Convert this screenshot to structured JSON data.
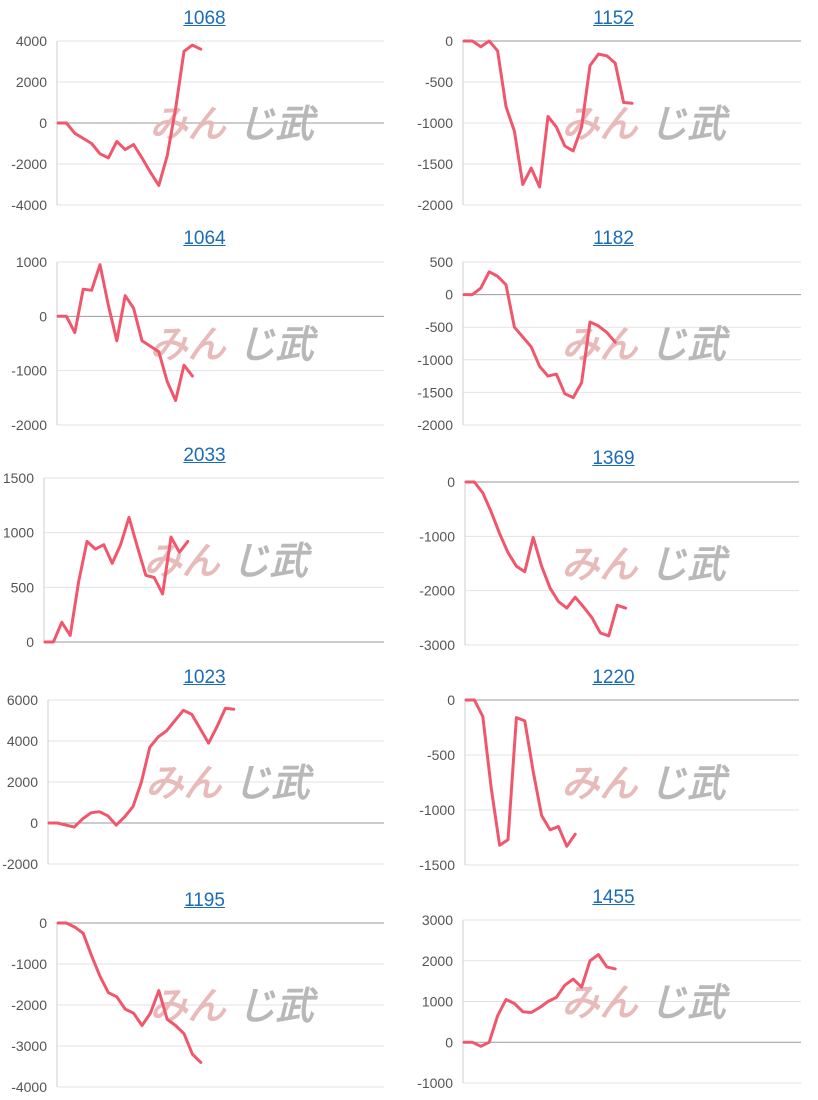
{
  "line_color": "#f0576d",
  "watermark_colors": {
    "kana": "#e8b7b7",
    "kanji": "#b5b5b5"
  },
  "watermark": {
    "kana": "みん",
    "kanji": "じ武"
  },
  "chart_data": [
    {
      "type": "line",
      "title": "1068",
      "yticks": [
        4000,
        2000,
        0,
        -2000,
        -4000
      ],
      "ylim": [
        -4000,
        4000
      ],
      "y": [
        0,
        0,
        -500,
        -750,
        -1000,
        -1500,
        -1700,
        -900,
        -1300,
        -1050,
        -1700,
        -2400,
        -3050,
        -1600,
        700,
        3500,
        3800,
        3600
      ]
    },
    {
      "type": "line",
      "title": "1152",
      "yticks": [
        0,
        -500,
        -1000,
        -1500,
        -2000
      ],
      "ylim": [
        -2000,
        0
      ],
      "y": [
        0,
        0,
        -70,
        0,
        -120,
        -800,
        -1100,
        -1750,
        -1550,
        -1780,
        -920,
        -1050,
        -1280,
        -1340,
        -1050,
        -300,
        -160,
        -180,
        -270,
        -750,
        -760
      ]
    },
    {
      "type": "line",
      "title": "1064",
      "yticks": [
        1000,
        0,
        -1000,
        -2000
      ],
      "ylim": [
        -2000,
        1000
      ],
      "y": [
        0,
        0,
        -300,
        500,
        480,
        950,
        200,
        -450,
        380,
        150,
        -450,
        -550,
        -650,
        -1200,
        -1550,
        -900,
        -1100
      ]
    },
    {
      "type": "line",
      "title": "1182",
      "yticks": [
        500,
        0,
        -500,
        -1000,
        -1500,
        -2000
      ],
      "ylim": [
        -2000,
        500
      ],
      "y": [
        0,
        0,
        100,
        350,
        280,
        150,
        -500,
        -650,
        -800,
        -1100,
        -1250,
        -1220,
        -1520,
        -1580,
        -1350,
        -420,
        -480,
        -580,
        -730
      ]
    },
    {
      "type": "line",
      "title": "2033",
      "yticks": [
        1500,
        1000,
        500,
        0
      ],
      "ylim": [
        0,
        1500
      ],
      "y": [
        0,
        0,
        180,
        60,
        550,
        920,
        850,
        890,
        720,
        890,
        1140,
        870,
        610,
        590,
        440,
        960,
        820,
        920
      ]
    },
    {
      "type": "line",
      "title": "1369",
      "yticks": [
        0,
        -1000,
        -2000,
        -3000
      ],
      "ylim": [
        -3000,
        0
      ],
      "y": [
        0,
        0,
        -200,
        -550,
        -950,
        -1300,
        -1550,
        -1650,
        -1020,
        -1550,
        -1950,
        -2200,
        -2320,
        -2120,
        -2300,
        -2500,
        -2780,
        -2830,
        -2270,
        -2320
      ]
    },
    {
      "type": "line",
      "title": "1023",
      "yticks": [
        6000,
        4000,
        2000,
        0,
        -2000
      ],
      "ylim": [
        -2000,
        6000
      ],
      "y": [
        0,
        0,
        -100,
        -200,
        200,
        500,
        550,
        350,
        -100,
        300,
        800,
        2000,
        3700,
        4200,
        4500,
        5000,
        5500,
        5300,
        4600,
        3900,
        4700,
        5600,
        5550
      ]
    },
    {
      "type": "line",
      "title": "1220",
      "yticks": [
        0,
        -500,
        -1000,
        -1500
      ],
      "ylim": [
        -1500,
        0
      ],
      "y": [
        0,
        0,
        -150,
        -800,
        -1320,
        -1270,
        -160,
        -190,
        -650,
        -1050,
        -1180,
        -1150,
        -1330,
        -1220
      ]
    },
    {
      "type": "line",
      "title": "1195",
      "yticks": [
        0,
        -1000,
        -2000,
        -3000,
        -4000
      ],
      "ylim": [
        -4000,
        0
      ],
      "y": [
        0,
        0,
        -100,
        -250,
        -800,
        -1300,
        -1700,
        -1800,
        -2100,
        -2200,
        -2500,
        -2200,
        -1650,
        -2350,
        -2500,
        -2700,
        -3200,
        -3400
      ]
    },
    {
      "type": "line",
      "title": "1455",
      "yticks": [
        3000,
        2000,
        1000,
        0,
        -1000
      ],
      "ylim": [
        -1000,
        3000
      ],
      "y": [
        0,
        0,
        -100,
        0,
        650,
        1050,
        950,
        750,
        730,
        850,
        1000,
        1100,
        1400,
        1550,
        1350,
        2000,
        2150,
        1850,
        1800
      ]
    }
  ]
}
